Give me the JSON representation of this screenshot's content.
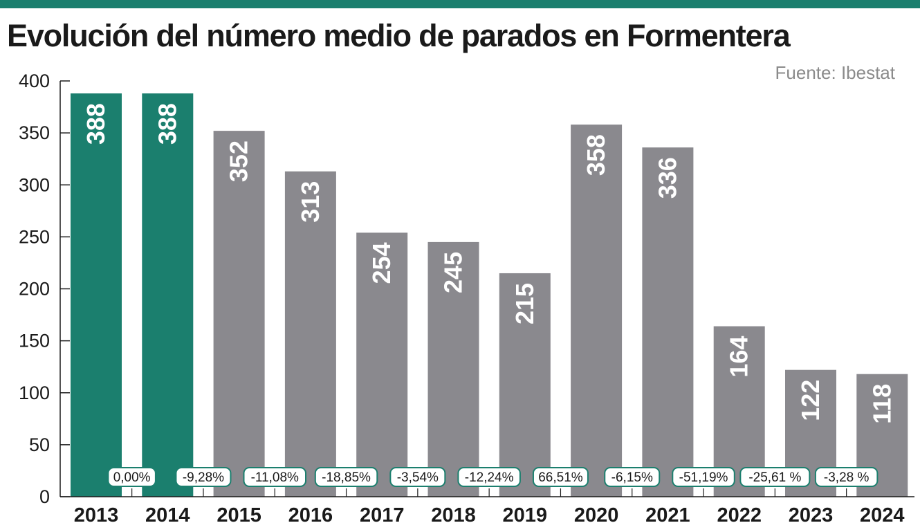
{
  "colors": {
    "accent": "#1b7f6e",
    "bar_gray": "#8a898e",
    "axis": "#1a1a1a"
  },
  "chart_data": {
    "type": "bar",
    "title": "Evolución del número medio de parados en Formentera",
    "source": "Fuente: Ibestat",
    "categories": [
      "2013",
      "2014",
      "2015",
      "2016",
      "2017",
      "2018",
      "2019",
      "2020",
      "2021",
      "2022",
      "2023",
      "2024"
    ],
    "values": [
      388,
      388,
      352,
      313,
      254,
      245,
      215,
      358,
      336,
      164,
      122,
      118
    ],
    "value_labels": [
      "388",
      "388",
      "352",
      "313",
      "254",
      "245",
      "215",
      "358",
      "336",
      "164",
      "122",
      "118"
    ],
    "highlighted": [
      "2013",
      "2014"
    ],
    "percent_changes": [
      "0,00%",
      "-9,28%",
      "-11,08%",
      "-18,85%",
      "-3,54%",
      "-12,24%",
      "66,51%",
      "-6,15%",
      "-51,19%",
      "-25,61 %",
      "-3,28 %"
    ],
    "ylim": [
      0,
      400
    ],
    "yticks": [
      "0",
      "50",
      "100",
      "150",
      "200",
      "250",
      "300",
      "350",
      "400"
    ],
    "ytick_values": [
      0,
      50,
      100,
      150,
      200,
      250,
      300,
      350,
      400
    ],
    "grid": false,
    "xlabel": "",
    "ylabel": ""
  }
}
